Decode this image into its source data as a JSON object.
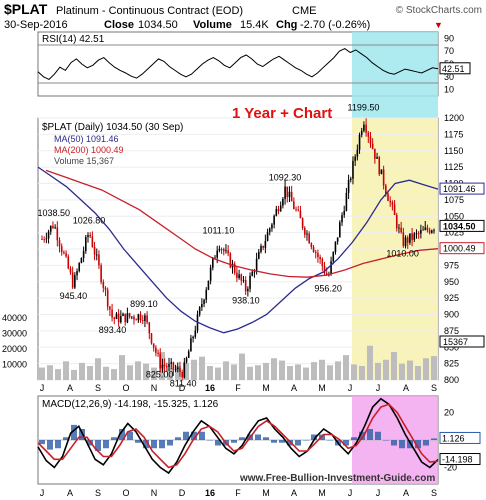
{
  "header": {
    "symbol": "$PLAT",
    "name": "Platinum - Continuous Contract (EOD)",
    "exchange": "CME",
    "watermark": "© StockCharts.com",
    "date": "30-Sep-2016",
    "close_label": "Close",
    "close_value": "1034.50",
    "volume_label": "Volume",
    "volume_value": "15.4K",
    "chg_label": "Chg",
    "chg_value": "-2.70 (-0.26%)",
    "chg_arrow": "▼"
  },
  "annotation": "1 Year + Chart",
  "footer_url": "www.Free-Bullion-Investment-Guide.com",
  "colors": {
    "price_up": "#000000",
    "price_down": "#cc0000",
    "ma50": "#2b2b8f",
    "ma200": "#c8202a",
    "volume": "#bdbdbd",
    "highlight_cyan": "#9fe8ef",
    "highlight_yellow": "#f7f2b2",
    "highlight_magenta": "#f2a6ee",
    "annotation": "#e01010"
  },
  "chart_data": [
    {
      "type": "line",
      "panel": "RSI",
      "legend": "RSI(14) 42.51",
      "ylim": [
        0,
        100
      ],
      "ticks": [
        "90",
        "70",
        "50",
        "30",
        "10"
      ],
      "last_label": "42.51",
      "series": [
        {
          "name": "RSI(14)",
          "values": [
            38,
            30,
            26,
            34,
            45,
            40,
            52,
            58,
            50,
            44,
            48,
            56,
            60,
            52,
            45,
            40,
            36,
            31,
            28,
            34,
            42,
            50,
            58,
            54,
            46,
            40,
            34,
            30,
            34,
            42,
            50,
            56,
            60,
            55,
            48,
            44,
            52,
            60,
            64,
            58,
            50,
            46,
            52,
            58,
            62,
            56,
            50,
            44,
            40,
            34,
            30,
            36,
            44,
            52,
            60,
            70,
            74,
            68,
            72,
            66,
            60,
            52,
            46,
            40,
            36,
            34,
            38,
            42,
            40,
            38,
            36,
            40,
            44,
            42.51
          ]
        }
      ]
    },
    {
      "type": "candlestick",
      "panel": "Price",
      "legend": "$PLAT (Daily) 1034.50 (30 Sep)",
      "ylim": [
        800,
        1200
      ],
      "y_ticks": [
        "1200",
        "1175",
        "1150",
        "1125",
        "1100",
        "1075",
        "1050",
        "1025",
        "1000",
        "975",
        "950",
        "925",
        "900",
        "875",
        "850",
        "825",
        "800"
      ],
      "x_ticks": [
        "J",
        "A",
        "S",
        "O",
        "N",
        "D",
        "16",
        "F",
        "M",
        "A",
        "M",
        "J",
        "J",
        "A",
        "S"
      ],
      "volume_ticks": [
        "40000",
        "30000",
        "20000",
        "10000"
      ],
      "price_annotations": [
        "1038.50",
        "1026.80",
        "945.40",
        "893.40",
        "899.10",
        "825.00",
        "811.40",
        "1011.10",
        "938.10",
        "1092.30",
        "956.20",
        "1199.50",
        "1010.00"
      ],
      "right_labels": [
        "1091.46",
        "1034.50",
        "1000.49",
        "15367"
      ],
      "series": [
        {
          "name": "MA(50) 1091.46",
          "values": [
            1125,
            1110,
            1095,
            1075,
            1055,
            1030,
            1000,
            975,
            950,
            925,
            905,
            890,
            880,
            872,
            878,
            888,
            900,
            920,
            940,
            955,
            965,
            985,
            1010,
            1040,
            1075,
            1100,
            1105,
            1098,
            1091.46
          ]
        },
        {
          "name": "MA(200) 1000.49",
          "values": [
            1120,
            1110,
            1100,
            1090,
            1075,
            1060,
            1040,
            1020,
            1000,
            985,
            975,
            968,
            962,
            958,
            957,
            960,
            968,
            978,
            985,
            992,
            998,
            1000.49
          ]
        },
        {
          "name": "Volume 15,367",
          "values": [
            8000,
            9500,
            7000,
            12000,
            6500,
            11000,
            9000,
            14000,
            8500,
            7000,
            16000,
            9500,
            12000,
            10500,
            8000,
            18000,
            7500,
            9000,
            11000,
            13000,
            15000,
            9000,
            8000,
            12000,
            10000,
            17000,
            8500,
            9500,
            11000,
            14000,
            12500,
            9000,
            10000,
            8000,
            11500,
            13000,
            9500,
            12000,
            16000,
            10000,
            9000,
            22000,
            11000,
            13000,
            18000,
            10500,
            12500,
            9000,
            14000,
            15367
          ]
        }
      ]
    },
    {
      "type": "line",
      "panel": "MACD",
      "legend": "MACD(12,26,9) -14.198, -15.325, 1.126",
      "ticks": [
        "20",
        "0",
        "-20"
      ],
      "last_labels": [
        "1.126",
        "-14.198"
      ],
      "x_ticks": [
        "J",
        "A",
        "S",
        "O",
        "N",
        "D",
        "16",
        "F",
        "M",
        "A",
        "M",
        "J",
        "J",
        "A",
        "S"
      ],
      "series": [
        {
          "name": "MACD(12,26,9)",
          "values": [
            -5,
            -15,
            -20,
            -12,
            5,
            10,
            -2,
            -14,
            -18,
            -10,
            4,
            12,
            6,
            -4,
            -14,
            -20,
            -24,
            -16,
            -4,
            6,
            14,
            10,
            2,
            -6,
            -10,
            -4,
            6,
            14,
            16,
            8,
            2,
            -6,
            -12,
            -8,
            2,
            8,
            4,
            -4,
            -10,
            -2,
            10,
            24,
            30,
            26,
            16,
            4,
            -6,
            -16,
            -20,
            -14.198
          ]
        },
        {
          "name": "Signal",
          "values": [
            -2,
            -8,
            -14,
            -14,
            -6,
            2,
            2,
            -6,
            -12,
            -12,
            -4,
            6,
            8,
            2,
            -8,
            -14,
            -20,
            -18,
            -10,
            0,
            8,
            10,
            6,
            -2,
            -8,
            -6,
            2,
            10,
            14,
            10,
            4,
            -2,
            -8,
            -8,
            -2,
            4,
            4,
            0,
            -6,
            -4,
            4,
            16,
            24,
            26,
            20,
            10,
            0,
            -10,
            -16,
            -15.325
          ]
        },
        {
          "name": "Histogram",
          "values": [
            -3,
            -7,
            -6,
            2,
            11,
            8,
            -4,
            -8,
            -6,
            2,
            8,
            6,
            -2,
            -6,
            -6,
            -6,
            -4,
            2,
            6,
            6,
            6,
            0,
            -4,
            -4,
            -2,
            2,
            4,
            4,
            2,
            -2,
            -2,
            -4,
            -4,
            0,
            4,
            4,
            0,
            -4,
            -4,
            2,
            6,
            8,
            6,
            0,
            -4,
            -6,
            -6,
            -6,
            -4,
            1.126
          ]
        }
      ]
    }
  ]
}
